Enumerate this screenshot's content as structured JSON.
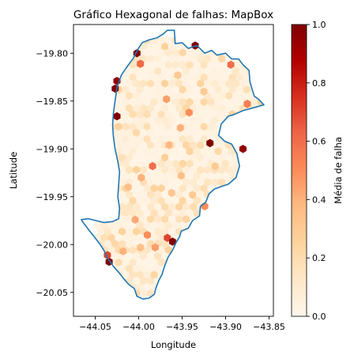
{
  "chart_data": {
    "type": "heatmap",
    "subtype": "hexbin",
    "title": "Gráfico Hexagonal de falhas: MapBox",
    "xlabel": "Longitude",
    "ylabel": "Latitude",
    "xlim": [
      -44.075,
      -43.845
    ],
    "ylim": [
      -20.075,
      -19.77
    ],
    "xticks": [
      -44.05,
      -44.0,
      -43.95,
      -43.9,
      -43.85
    ],
    "xtick_labels": [
      "−44.05",
      "−44.00",
      "−43.95",
      "−43.90",
      "−43.85"
    ],
    "yticks": [
      -19.8,
      -19.85,
      -19.9,
      -19.95,
      -20.0,
      -20.05
    ],
    "ytick_labels": [
      "−19.80",
      "−19.85",
      "−19.90",
      "−19.95",
      "−20.00",
      "−20.05"
    ],
    "colormap": "OrRd",
    "colorbar": {
      "label": "Média de falha",
      "range": [
        0,
        1
      ],
      "ticks": [
        0,
        0.2,
        0.4,
        0.6,
        0.8,
        1.0
      ],
      "tick_labels": [
        "0.0",
        "0.2",
        "0.4",
        "0.6",
        "0.8",
        "1.0"
      ]
    },
    "boundary_color": "#1f77b4",
    "boundary": [
      [
        -43.967,
        -19.776
      ],
      [
        -43.959,
        -19.776
      ],
      [
        -43.958,
        -19.79
      ],
      [
        -43.95,
        -19.789
      ],
      [
        -43.943,
        -19.795
      ],
      [
        -43.933,
        -19.792
      ],
      [
        -43.924,
        -19.8
      ],
      [
        -43.916,
        -19.797
      ],
      [
        -43.91,
        -19.802
      ],
      [
        -43.9,
        -19.8
      ],
      [
        -43.893,
        -19.806
      ],
      [
        -43.885,
        -19.806
      ],
      [
        -43.88,
        -19.812
      ],
      [
        -43.873,
        -19.818
      ],
      [
        -43.872,
        -19.83
      ],
      [
        -43.867,
        -19.845
      ],
      [
        -43.862,
        -19.848
      ],
      [
        -43.856,
        -19.854
      ],
      [
        -43.868,
        -19.857
      ],
      [
        -43.88,
        -19.86
      ],
      [
        -43.89,
        -19.864
      ],
      [
        -43.897,
        -19.866
      ],
      [
        -43.905,
        -19.874
      ],
      [
        -43.908,
        -19.886
      ],
      [
        -43.901,
        -19.892
      ],
      [
        -43.893,
        -19.895
      ],
      [
        -43.887,
        -19.905
      ],
      [
        -43.884,
        -19.918
      ],
      [
        -43.888,
        -19.93
      ],
      [
        -43.897,
        -19.937
      ],
      [
        -43.904,
        -19.939
      ],
      [
        -43.913,
        -19.942
      ],
      [
        -43.919,
        -19.947
      ],
      [
        -43.923,
        -19.956
      ],
      [
        -43.929,
        -19.96
      ],
      [
        -43.93,
        -19.97
      ],
      [
        -43.938,
        -19.975
      ],
      [
        -43.943,
        -19.983
      ],
      [
        -43.951,
        -19.986
      ],
      [
        -43.953,
        -19.992
      ],
      [
        -43.957,
        -19.998
      ],
      [
        -43.961,
        -20.006
      ],
      [
        -43.966,
        -20.013
      ],
      [
        -43.97,
        -20.022
      ],
      [
        -43.973,
        -20.031
      ],
      [
        -43.977,
        -20.038
      ],
      [
        -43.98,
        -20.045
      ],
      [
        -43.982,
        -20.052
      ],
      [
        -43.988,
        -20.056
      ],
      [
        -43.995,
        -20.057
      ],
      [
        -44.002,
        -20.054
      ],
      [
        -44.005,
        -20.046
      ],
      [
        -44.011,
        -20.042
      ],
      [
        -44.017,
        -20.036
      ],
      [
        -44.023,
        -20.029
      ],
      [
        -44.029,
        -20.023
      ],
      [
        -44.036,
        -20.014
      ],
      [
        -44.04,
        -20.006
      ],
      [
        -44.045,
        -19.999
      ],
      [
        -44.051,
        -19.992
      ],
      [
        -44.058,
        -19.984
      ],
      [
        -44.063,
        -19.978
      ],
      [
        -44.066,
        -19.974
      ],
      [
        -44.058,
        -19.973
      ],
      [
        -44.049,
        -19.975
      ],
      [
        -44.04,
        -19.977
      ],
      [
        -44.03,
        -19.976
      ],
      [
        -44.023,
        -19.973
      ],
      [
        -44.022,
        -19.962
      ],
      [
        -44.024,
        -19.95
      ],
      [
        -44.023,
        -19.937
      ],
      [
        -44.022,
        -19.924
      ],
      [
        -44.024,
        -19.913
      ],
      [
        -44.027,
        -19.901
      ],
      [
        -44.029,
        -19.888
      ],
      [
        -44.03,
        -19.875
      ],
      [
        -44.029,
        -19.862
      ],
      [
        -44.027,
        -19.849
      ],
      [
        -44.025,
        -19.836
      ],
      [
        -44.02,
        -19.823
      ],
      [
        -44.014,
        -19.815
      ],
      [
        -44.006,
        -19.805
      ],
      [
        -44.001,
        -19.796
      ],
      [
        -43.996,
        -19.789
      ],
      [
        -43.988,
        -19.786
      ],
      [
        -43.979,
        -19.784
      ],
      [
        -43.972,
        -19.78
      ],
      [
        -43.967,
        -19.776
      ]
    ],
    "bins_high": [
      {
        "x": -43.935,
        "y": -19.792,
        "v": 1.0
      },
      {
        "x": -44.002,
        "y": -19.8,
        "v": 1.0
      },
      {
        "x": -44.025,
        "y": -19.829,
        "v": 0.95
      },
      {
        "x": -44.027,
        "y": -19.837,
        "v": 1.0
      },
      {
        "x": -43.998,
        "y": -19.811,
        "v": 0.62
      },
      {
        "x": -43.894,
        "y": -19.812,
        "v": 0.6
      },
      {
        "x": -43.875,
        "y": -19.853,
        "v": 0.55
      },
      {
        "x": -44.025,
        "y": -19.866,
        "v": 1.0
      },
      {
        "x": -43.968,
        "y": -19.848,
        "v": 0.45
      },
      {
        "x": -43.942,
        "y": -19.862,
        "v": 0.5
      },
      {
        "x": -43.918,
        "y": -19.894,
        "v": 1.0
      },
      {
        "x": -43.88,
        "y": -19.9,
        "v": 0.95
      },
      {
        "x": -43.952,
        "y": -19.878,
        "v": 0.4
      },
      {
        "x": -43.965,
        "y": -19.896,
        "v": 0.38
      },
      {
        "x": -43.984,
        "y": -19.918,
        "v": 0.6
      },
      {
        "x": -43.997,
        "y": -19.93,
        "v": 0.4
      },
      {
        "x": -44.012,
        "y": -19.94,
        "v": 0.35
      },
      {
        "x": -43.951,
        "y": -19.928,
        "v": 0.35
      },
      {
        "x": -43.962,
        "y": -19.946,
        "v": 0.32
      },
      {
        "x": -43.924,
        "y": -19.96,
        "v": 0.5
      },
      {
        "x": -44.004,
        "y": -19.974,
        "v": 0.42
      },
      {
        "x": -43.99,
        "y": -19.99,
        "v": 0.5
      },
      {
        "x": -43.967,
        "y": -19.993,
        "v": 0.7
      },
      {
        "x": -43.961,
        "y": -19.997,
        "v": 1.0
      },
      {
        "x": -43.981,
        "y": -20.003,
        "v": 0.45
      },
      {
        "x": -44.034,
        "y": -20.018,
        "v": 1.0
      },
      {
        "x": -44.036,
        "y": -20.011,
        "v": 0.7
      },
      {
        "x": -44.018,
        "y": -20.007,
        "v": 0.4
      },
      {
        "x": -43.998,
        "y": -20.003,
        "v": 0.35
      },
      {
        "x": -43.938,
        "y": -19.948,
        "v": 0.3
      },
      {
        "x": -43.912,
        "y": -19.918,
        "v": 0.3
      },
      {
        "x": -43.955,
        "y": -19.823,
        "v": 0.3
      },
      {
        "x": -43.925,
        "y": -19.84,
        "v": 0.3
      }
    ]
  }
}
